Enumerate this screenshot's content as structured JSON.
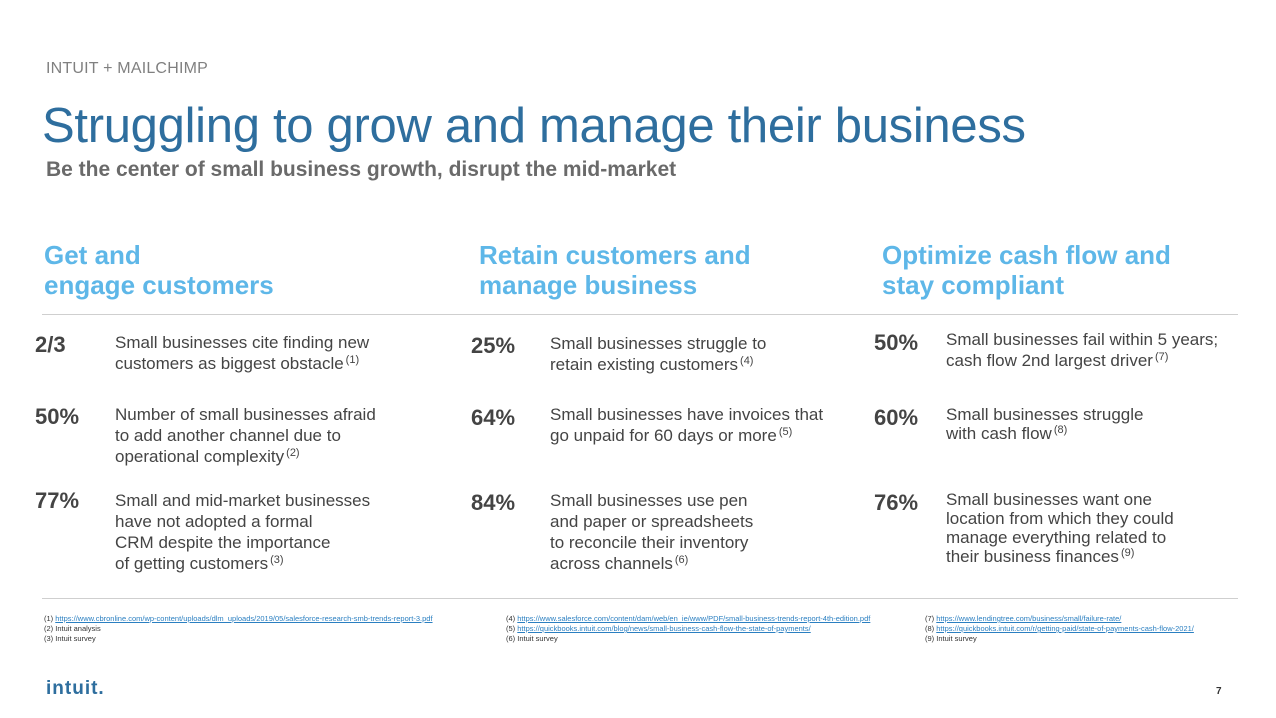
{
  "header": {
    "eyebrow": "INTUIT + MAILCHIMP",
    "title": "Struggling to grow and manage their business",
    "subtitle": "Be the center of small business growth, disrupt the mid-market"
  },
  "columns": [
    {
      "heading": [
        "Get and",
        "engage customers"
      ],
      "stats": [
        {
          "value": "2/3",
          "lines": [
            "Small businesses cite finding new",
            "customers as biggest obstacle"
          ],
          "ref": "(1)"
        },
        {
          "value": "50%",
          "lines": [
            "Number of small businesses afraid",
            "to add another channel due to",
            "operational complexity"
          ],
          "ref": "(2)"
        },
        {
          "value": "77%",
          "lines": [
            "Small and mid-market businesses",
            "have not adopted a formal",
            "CRM despite the importance",
            "of getting customers"
          ],
          "ref": "(3)"
        }
      ]
    },
    {
      "heading": [
        "Retain customers and",
        "manage business"
      ],
      "stats": [
        {
          "value": "25%",
          "lines": [
            "Small businesses struggle to",
            "retain existing customers"
          ],
          "ref": "(4)"
        },
        {
          "value": "64%",
          "lines": [
            "Small businesses have invoices that",
            "go unpaid for 60 days or more"
          ],
          "ref": "(5)"
        },
        {
          "value": "84%",
          "lines": [
            "Small businesses use pen",
            "and paper or spreadsheets",
            "to reconcile their inventory",
            "across channels"
          ],
          "ref": "(6)"
        }
      ]
    },
    {
      "heading": [
        "Optimize cash flow and",
        "stay compliant"
      ],
      "stats": [
        {
          "value": "50%",
          "lines": [
            "Small businesses fail within 5 years;",
            "cash flow 2nd largest driver"
          ],
          "ref": "(7)"
        },
        {
          "value": "60%",
          "lines": [
            "Small businesses struggle",
            "with cash flow"
          ],
          "ref": "(8)"
        },
        {
          "value": "76%",
          "lines": [
            "Small businesses want one",
            "location from which they could",
            "manage everything related to",
            "their business finances"
          ],
          "ref": "(9)"
        }
      ]
    }
  ],
  "footnotes": [
    [
      {
        "num": "(1)",
        "text": "https://www.cbronline.com/wp-content/uploads/dlm_uploads/2019/05/salesforce-research-smb-trends-report-3.pdf",
        "link": true
      },
      {
        "num": "(2)",
        "text": "Intuit analysis",
        "link": false
      },
      {
        "num": "(3)",
        "text": "Intuit survey",
        "link": false
      }
    ],
    [
      {
        "num": "(4)",
        "text": "https://www.salesforce.com/content/dam/web/en_ie/www/PDF/small-business-trends-report-4th-edition.pdf",
        "link": true
      },
      {
        "num": "(5)",
        "text": "https://quickbooks.intuit.com/blog/news/small-business-cash-flow-the-state-of-payments/",
        "link": true
      },
      {
        "num": "(6)",
        "text": "Intuit survey",
        "link": false
      }
    ],
    [
      {
        "num": "(7)",
        "text": "https://www.lendingtree.com/business/small/failure-rate/",
        "link": true
      },
      {
        "num": "(8)",
        "text": "https://quickbooks.intuit.com/r/getting-paid/state-of-payments-cash-flow-2021/",
        "link": true
      },
      {
        "num": "(9)",
        "text": "Intuit survey",
        "link": false
      }
    ]
  ],
  "footer": {
    "logo": "intuit.",
    "page_number": "7"
  }
}
